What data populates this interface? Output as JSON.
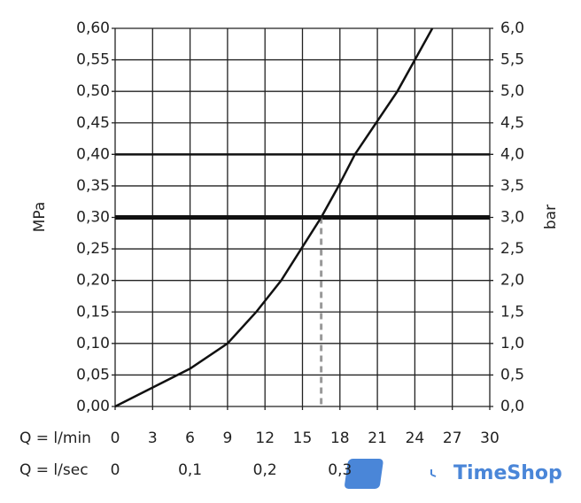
{
  "chart_data": {
    "type": "line",
    "y_label": "MPa",
    "y2_label": "bar",
    "x_label": "Q = l/min",
    "x2_label": "Q = l/sec",
    "x": [
      0,
      3,
      6,
      9,
      11.3,
      13.3,
      14.9,
      16.5,
      17.9,
      19.2,
      20.9,
      22.6,
      24.0,
      25.4
    ],
    "series": [
      {
        "color": "#111111",
        "values": [
          0,
          0.03,
          0.06,
          0.1,
          0.15,
          0.2,
          0.25,
          0.3,
          0.35,
          0.4,
          0.45,
          0.5,
          0.55,
          0.6
        ]
      }
    ],
    "xlim": [
      0,
      30
    ],
    "xticks": [
      0,
      3,
      6,
      9,
      12,
      15,
      18,
      21,
      24,
      27,
      30
    ],
    "x2lim": [
      0,
      0.5
    ],
    "x2ticks": [
      0,
      {
        "value": 0.1,
        "label": "0,1"
      },
      {
        "value": 0.2,
        "label": "0,2"
      },
      {
        "value": 0.3,
        "label": "0,3"
      }
    ],
    "ylim": [
      0,
      0.6
    ],
    "yticks": [
      {
        "value": 0,
        "label": "0,00"
      },
      {
        "value": 0.05,
        "label": "0,05"
      },
      {
        "value": 0.1,
        "label": "0,10"
      },
      {
        "value": 0.15,
        "label": "0,15"
      },
      {
        "value": 0.2,
        "label": "0,20"
      },
      {
        "value": 0.25,
        "label": "0,25"
      },
      {
        "value": 0.3,
        "label": "0,30"
      },
      {
        "value": 0.35,
        "label": "0,35"
      },
      {
        "value": 0.4,
        "label": "0,40"
      },
      {
        "value": 0.45,
        "label": "0,45"
      },
      {
        "value": 0.5,
        "label": "0,50"
      },
      {
        "value": 0.55,
        "label": "0,55"
      },
      {
        "value": 0.6,
        "label": "0,60"
      }
    ],
    "y2lim": [
      0,
      6
    ],
    "y2ticks": [
      {
        "value": 0,
        "label": "0,0"
      },
      {
        "value": 0.5,
        "label": "0,5"
      },
      {
        "value": 1,
        "label": "1,0"
      },
      {
        "value": 1.5,
        "label": "1,5"
      },
      {
        "value": 2,
        "label": "2,0"
      },
      {
        "value": 2.5,
        "label": "2,5"
      },
      {
        "value": 3,
        "label": "3,0"
      },
      {
        "value": 3.5,
        "label": "3,5"
      },
      {
        "value": 4,
        "label": "4,0"
      },
      {
        "value": 4.5,
        "label": "4,5"
      },
      {
        "value": 5,
        "label": "5,0"
      },
      {
        "value": 5.5,
        "label": "5,5"
      },
      {
        "value": 6,
        "label": "6,0"
      }
    ],
    "grid": true,
    "strong_y": [
      0.4
    ],
    "reference": {
      "x": 16.5,
      "y": 0.3
    },
    "watermark": "TimeShop"
  }
}
